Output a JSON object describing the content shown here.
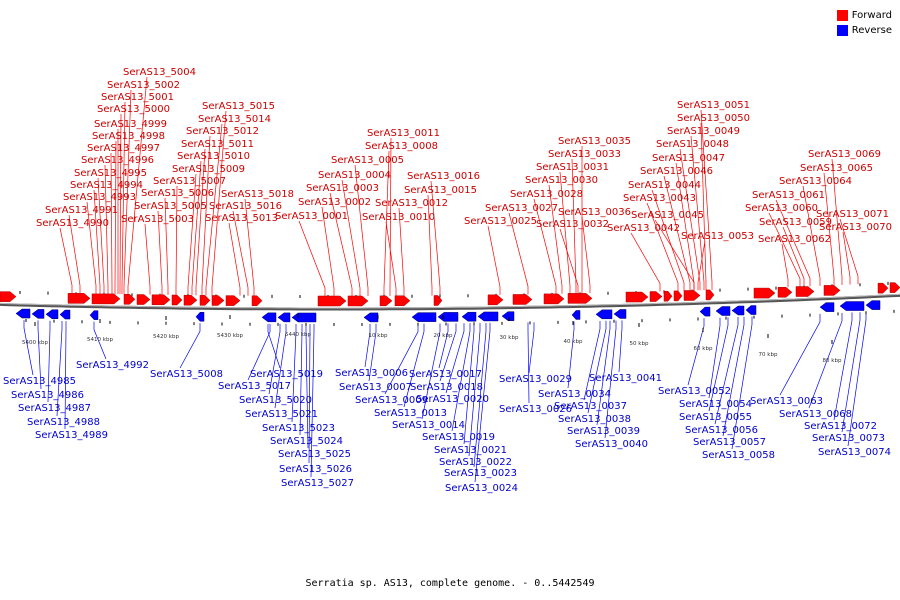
{
  "legend": {
    "forward": {
      "label": "Forward",
      "color": "#ff0000"
    },
    "reverse": {
      "label": "Reverse",
      "color": "#0000ff"
    }
  },
  "caption": "Serratia sp. AS13, complete genome. - 0..5442549",
  "ticks": [
    "5400 kbp",
    "5410 kbp",
    "5420 kbp",
    "5430 kbp",
    "5440 kbp",
    "10 kbp",
    "20 kbp",
    "30 kbp",
    "40 kbp",
    "50 kbp",
    "60 kbp",
    "70 kbp",
    "80 kbp"
  ],
  "forward_labels": [
    "SerAS13_5004",
    "SerAS13_5002",
    "SerAS13_5001",
    "SerAS13_5000",
    "SerAS13_4999",
    "SerAS13_4998",
    "SerAS13_4997",
    "SerAS13_4996",
    "SerAS13_4995",
    "SerAS13_4994",
    "SerAS13_4993",
    "SerAS13_4991",
    "SerAS13_4990",
    "SerAS13_5015",
    "SerAS13_5014",
    "SerAS13_5012",
    "SerAS13_5011",
    "SerAS13_5010",
    "SerAS13_5009",
    "SerAS13_5007",
    "SerAS13_5006",
    "SerAS13_5005",
    "SerAS13_5003",
    "SerAS13_5018",
    "SerAS13_5016",
    "SerAS13_5013",
    "SerAS13_0011",
    "SerAS13_0008",
    "SerAS13_0005",
    "SerAS13_0004",
    "SerAS13_0003",
    "SerAS13_0002",
    "SerAS13_0001",
    "SerAS13_0016",
    "SerAS13_0015",
    "SerAS13_0012",
    "SerAS13_0010",
    "SerAS13_0035",
    "SerAS13_0033",
    "SerAS13_0031",
    "SerAS13_0030",
    "SerAS13_0028",
    "SerAS13_0027",
    "SerAS13_0025",
    "SerAS13_0036",
    "SerAS13_0032",
    "SerAS13_0051",
    "SerAS13_0050",
    "SerAS13_0049",
    "SerAS13_0048",
    "SerAS13_0047",
    "SerAS13_0046",
    "SerAS13_0044",
    "SerAS13_0043",
    "SerAS13_0045",
    "SerAS13_0042",
    "SerAS13_0053",
    "SerAS13_0069",
    "SerAS13_0065",
    "SerAS13_0064",
    "SerAS13_0061",
    "SerAS13_0060",
    "SerAS13_0059",
    "SerAS13_0071",
    "SerAS13_0062",
    "SerAS13_0070"
  ],
  "reverse_labels": [
    "SerAS13_4985",
    "SerAS13_4986",
    "SerAS13_4987",
    "SerAS13_4988",
    "SerAS13_4989",
    "SerAS13_4992",
    "SerAS13_5008",
    "SerAS13_5019",
    "SerAS13_5017",
    "SerAS13_5020",
    "SerAS13_5021",
    "SerAS13_5023",
    "SerAS13_5024",
    "SerAS13_5025",
    "SerAS13_5026",
    "SerAS13_5027",
    "SerAS13_0006",
    "SerAS13_0007",
    "SerAS13_0009",
    "SerAS13_0013",
    "SerAS13_0014",
    "SerAS13_0017",
    "SerAS13_0018",
    "SerAS13_0020",
    "SerAS13_0019",
    "SerAS13_0021",
    "SerAS13_0022",
    "SerAS13_0023",
    "SerAS13_0024",
    "SerAS13_0026",
    "SerAS13_0029",
    "SerAS13_0034",
    "SerAS13_0037",
    "SerAS13_0038",
    "SerAS13_0039",
    "SerAS13_0040",
    "SerAS13_0041",
    "SerAS13_0052",
    "SerAS13_0054",
    "SerAS13_0055",
    "SerAS13_0056",
    "SerAS13_0057",
    "SerAS13_0058",
    "SerAS13_0063",
    "SerAS13_0068",
    "SerAS13_0072",
    "SerAS13_0073",
    "SerAS13_0074"
  ]
}
